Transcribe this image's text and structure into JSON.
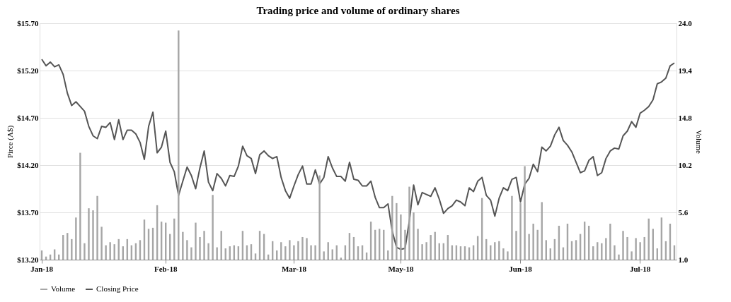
{
  "chart_data": {
    "type": "bar",
    "title": "Trading price and volume of ordinary shares",
    "ylabel": "Pirce (A$)",
    "y2label": "Volume",
    "categories": [
      "Jan-18",
      null,
      null,
      null,
      null,
      null,
      null,
      null,
      null,
      null,
      null,
      null,
      null,
      null,
      null,
      null,
      null,
      null,
      null,
      null,
      null,
      null,
      null,
      null,
      null,
      null,
      null,
      null,
      null,
      "Feb-18",
      null,
      null,
      null,
      null,
      null,
      null,
      null,
      null,
      null,
      null,
      null,
      null,
      null,
      null,
      null,
      null,
      null,
      null,
      null,
      null,
      null,
      null,
      null,
      null,
      null,
      null,
      null,
      null,
      null,
      "Mar-18",
      null,
      null,
      null,
      null,
      null,
      null,
      null,
      null,
      null,
      null,
      null,
      null,
      null,
      null,
      null,
      null,
      null,
      null,
      null,
      null,
      null,
      null,
      null,
      null,
      "May-18",
      null,
      null,
      null,
      null,
      null,
      null,
      null,
      null,
      null,
      null,
      null,
      null,
      null,
      null,
      null,
      null,
      null,
      null,
      null,
      null,
      null,
      null,
      null,
      null,
      null,
      null,
      null,
      "Jun-18",
      null,
      null,
      null,
      null,
      null,
      null,
      null,
      null,
      null,
      null,
      null,
      null,
      null,
      null,
      null,
      null,
      null,
      null,
      null,
      null,
      null,
      null,
      null,
      null,
      null,
      null,
      null,
      "Jul-18",
      null,
      null,
      null,
      null,
      null,
      null,
      null,
      null
    ],
    "series": [
      {
        "name": "Volume",
        "axis": "y2",
        "color": "#a6a6a6",
        "values": [
          1.9,
          1.3,
          1.5,
          2.0,
          1.5,
          3.4,
          3.6,
          3.0,
          5.1,
          11.4,
          2.6,
          6.0,
          5.8,
          7.2,
          4.2,
          2.4,
          2.7,
          2.5,
          3.0,
          2.3,
          3.0,
          2.4,
          2.6,
          2.9,
          4.9,
          4.0,
          4.1,
          6.3,
          4.7,
          4.6,
          3.5,
          5.0,
          23.3,
          3.7,
          2.9,
          2.2,
          4.6,
          3.2,
          3.8,
          2.6,
          7.3,
          2.2,
          3.8,
          2.1,
          2.3,
          2.4,
          2.3,
          3.8,
          2.4,
          2.5,
          1.6,
          3.8,
          3.5,
          1.5,
          2.8,
          1.9,
          2.7,
          2.3,
          2.9,
          2.4,
          2.8,
          3.2,
          3.1,
          2.4,
          2.4,
          9.2,
          1.8,
          2.7,
          2.0,
          2.4,
          1.2,
          2.4,
          3.6,
          3.2,
          2.3,
          2.4,
          1.7,
          4.7,
          3.9,
          4.0,
          3.9,
          1.9,
          7.2,
          6.5,
          5.4,
          3.9,
          8.1,
          5.6,
          4.0,
          2.5,
          2.7,
          3.4,
          3.7,
          2.6,
          2.6,
          3.4,
          2.4,
          2.4,
          2.3,
          2.3,
          2.2,
          2.4,
          3.3,
          7.0,
          3.0,
          2.4,
          2.7,
          2.8,
          2.1,
          1.8,
          7.2,
          3.8,
          6.5,
          10.1,
          3.5,
          4.5,
          3.9,
          6.6,
          2.9,
          2.1,
          3.0,
          4.3,
          2.2,
          4.5,
          2.8,
          2.9,
          3.5,
          4.7,
          4.3,
          2.3,
          2.7,
          2.6,
          3.1,
          4.5,
          2.4,
          1.5,
          3.8,
          3.2,
          1.8,
          3.1,
          2.7,
          3.2,
          5.0,
          4.0,
          2.1,
          5.1,
          2.8,
          4.5,
          2.4
        ]
      },
      {
        "name": "Closing Price",
        "type": "line",
        "color": "#555555",
        "values": [
          15.32,
          15.25,
          15.29,
          15.24,
          15.26,
          15.16,
          14.96,
          14.83,
          14.87,
          14.82,
          14.77,
          14.61,
          14.51,
          14.48,
          14.61,
          14.6,
          14.65,
          14.47,
          14.68,
          14.47,
          14.57,
          14.57,
          14.53,
          14.44,
          14.26,
          14.61,
          14.76,
          14.33,
          14.39,
          14.56,
          14.23,
          14.13,
          13.88,
          14.03,
          14.18,
          14.09,
          13.95,
          14.17,
          14.35,
          14.02,
          13.93,
          14.11,
          14.06,
          13.98,
          14.09,
          14.08,
          14.19,
          14.4,
          14.3,
          14.27,
          14.11,
          14.31,
          14.35,
          14.3,
          14.27,
          14.29,
          14.07,
          13.93,
          13.85,
          13.98,
          14.1,
          14.19,
          14.0,
          14.0,
          14.15,
          14.0,
          14.07,
          14.29,
          14.17,
          14.08,
          14.08,
          14.03,
          14.23,
          14.05,
          14.04,
          13.98,
          13.98,
          14.03,
          13.86,
          13.75,
          13.75,
          13.79,
          13.5,
          13.33,
          13.31,
          13.32,
          13.61,
          13.99,
          13.78,
          13.91,
          13.89,
          13.87,
          13.96,
          13.84,
          13.69,
          13.74,
          13.77,
          13.83,
          13.81,
          13.77,
          13.96,
          13.92,
          14.03,
          14.07,
          13.88,
          13.83,
          13.66,
          13.85,
          13.96,
          13.93,
          14.05,
          14.07,
          13.81,
          14.0,
          14.06,
          14.21,
          14.13,
          14.39,
          14.35,
          14.4,
          14.52,
          14.6,
          14.46,
          14.41,
          14.34,
          14.23,
          14.12,
          14.14,
          14.25,
          14.29,
          14.09,
          14.12,
          14.27,
          14.35,
          14.38,
          14.37,
          14.51,
          14.56,
          14.66,
          14.6,
          14.75,
          14.78,
          14.82,
          14.89,
          15.06,
          15.08,
          15.12,
          15.25,
          15.28
        ]
      }
    ],
    "ylim": [
      13.2,
      15.7
    ],
    "yticks": [
      {
        "value": 13.2,
        "label": "$13.20"
      },
      {
        "value": 13.7,
        "label": "$13.70"
      },
      {
        "value": 14.2,
        "label": "$14.20"
      },
      {
        "value": 14.7,
        "label": "$14.70"
      },
      {
        "value": 15.2,
        "label": "$15.20"
      },
      {
        "value": 15.7,
        "label": "$15.70"
      }
    ],
    "y2lim": [
      1.0,
      24.0
    ],
    "y2ticks": [
      {
        "value": 1,
        "label": "1.0"
      },
      {
        "value": 5.6,
        "label": "5.6"
      },
      {
        "value": 10.2,
        "label": "10.2"
      },
      {
        "value": 14.8,
        "label": "14.8"
      },
      {
        "value": 19.4,
        "label": "19.4"
      },
      {
        "value": 24,
        "label": "24.0"
      }
    ],
    "grid": "y",
    "legend": "bottom"
  }
}
